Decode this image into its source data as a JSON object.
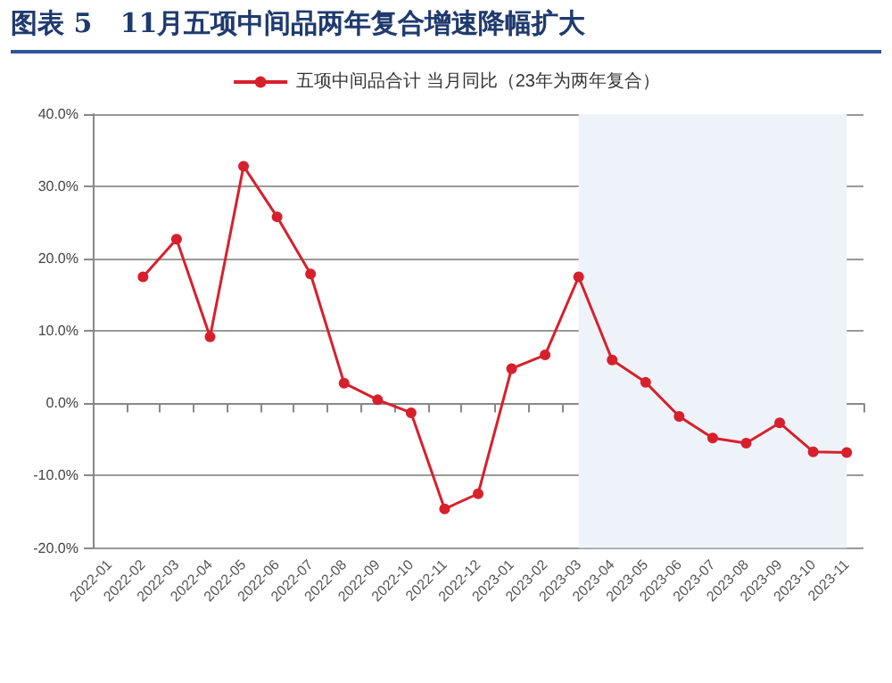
{
  "chart_data": {
    "type": "line",
    "title": "图表 5   11月五项中间品两年复合增速降幅扩大",
    "categories": [
      "2022-01",
      "2022-02",
      "2022-03",
      "2022-04",
      "2022-05",
      "2022-06",
      "2022-07",
      "2022-08",
      "2022-09",
      "2022-10",
      "2022-11",
      "2022-12",
      "2023-01",
      "2023-02",
      "2023-03",
      "2023-04",
      "2023-05",
      "2023-06",
      "2023-07",
      "2023-08",
      "2023-09",
      "2023-10",
      "2023-11"
    ],
    "series": [
      {
        "name": "五项中间品合计 当月同比（23年为两年复合）",
        "color": "#d7202c",
        "values": [
          null,
          17.5,
          22.7,
          9.2,
          32.8,
          25.8,
          17.9,
          2.8,
          0.5,
          -1.3,
          -14.6,
          -12.5,
          4.8,
          6.7,
          17.5,
          6.0,
          2.9,
          -1.8,
          -4.8,
          -5.5,
          -2.7,
          -6.7,
          -6.8
        ]
      }
    ],
    "ylim": [
      -20,
      40
    ],
    "yticks": [
      {
        "value": -20,
        "label": "-20.0%"
      },
      {
        "value": -10,
        "label": "-10.0%"
      },
      {
        "value": 0,
        "label": "0.0%"
      },
      {
        "value": 10,
        "label": "10.0%"
      },
      {
        "value": 20,
        "label": "20.0%"
      },
      {
        "value": 30,
        "label": "30.0%"
      },
      {
        "value": 40,
        "label": "40.0%"
      }
    ],
    "bands": [
      {
        "axis": "x",
        "from": "2023-03",
        "to": "2023-11",
        "color": "#eef3f9"
      }
    ],
    "grid": "y",
    "legend": "top",
    "marker": "circle",
    "line_style": "solid"
  }
}
